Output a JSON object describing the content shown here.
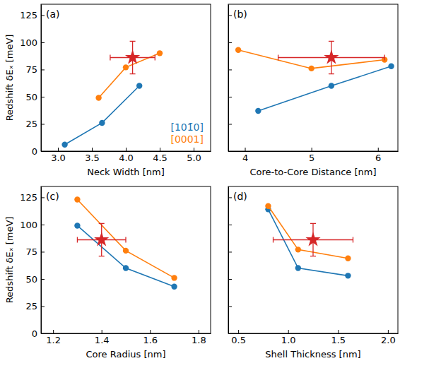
{
  "chart_data": [
    {
      "type": "line",
      "title": "(a)",
      "x_label": "Neck Width [nm]",
      "y_label": "Redshift δEₓ [meV]",
      "xlim": [
        2.75,
        5.25
      ],
      "xticks": [
        {
          "value": 3,
          "label": "3.0"
        },
        3.5,
        {
          "value": 4,
          "label": "4.0"
        },
        4.5,
        {
          "value": 5,
          "label": "5.0"
        }
      ],
      "ylim": [
        0,
        135
      ],
      "yticks": [
        0,
        25,
        50,
        75,
        100,
        125
      ],
      "legend": "lower right",
      "series": [
        {
          "name": "[101̄0]",
          "color": "#1f77b4",
          "marker": "circle",
          "x": [
            3.1,
            3.65,
            4.2
          ],
          "values": [
            6,
            26,
            60
          ]
        },
        {
          "name": "[0001]",
          "color": "#ff7f0e",
          "marker": "circle",
          "x": [
            3.6,
            4.0,
            4.5
          ],
          "values": [
            49,
            77,
            90
          ]
        },
        {
          "type": "scatter",
          "color": "#d62728",
          "marker": "star",
          "x": [
            4.1
          ],
          "values": [
            86
          ],
          "x_error": [
            0.33
          ],
          "y_error": [
            15
          ]
        }
      ]
    },
    {
      "type": "line",
      "title": "(b)",
      "x_label": "Core-to-Core Distance [nm]",
      "xlim": [
        3.75,
        6.3
      ],
      "xticks": [
        4,
        5,
        6
      ],
      "ylim": [
        0,
        135
      ],
      "yticks": [
        0,
        25,
        50,
        75,
        100,
        125
      ],
      "tick_labels": "x",
      "series": [
        {
          "color": "#1f77b4",
          "marker": "circle",
          "x": [
            4.2,
            5.3,
            6.2
          ],
          "values": [
            37,
            60,
            78
          ]
        },
        {
          "color": "#ff7f0e",
          "marker": "circle",
          "x": [
            3.9,
            5.0,
            6.1
          ],
          "values": [
            93,
            76,
            84
          ]
        },
        {
          "type": "scatter",
          "color": "#d62728",
          "marker": "star",
          "x": [
            5.3
          ],
          "values": [
            86
          ],
          "x_error": [
            0.8
          ],
          "y_error": [
            15
          ]
        }
      ]
    },
    {
      "type": "line",
      "title": "(c)",
      "x_label": "Core Radius [nm]",
      "y_label": "Redshift δEₓ [meV]",
      "xlim": [
        1.15,
        1.85
      ],
      "xticks": [
        1.2,
        1.4,
        1.6,
        1.8
      ],
      "ylim": [
        0,
        135
      ],
      "yticks": [
        0,
        25,
        50,
        75,
        100,
        125
      ],
      "series": [
        {
          "color": "#1f77b4",
          "marker": "circle",
          "x": [
            1.3,
            1.5,
            1.7
          ],
          "values": [
            99,
            60,
            43
          ]
        },
        {
          "color": "#ff7f0e",
          "marker": "circle",
          "x": [
            1.3,
            1.5,
            1.7
          ],
          "values": [
            123,
            76,
            51
          ]
        },
        {
          "type": "scatter",
          "color": "#d62728",
          "marker": "star",
          "x": [
            1.4
          ],
          "values": [
            86
          ],
          "x_error": [
            0.1
          ],
          "y_error": [
            15
          ]
        }
      ]
    },
    {
      "type": "line",
      "title": "(d)",
      "x_label": "Shell Thickness [nm]",
      "xlim": [
        0.4,
        2.1
      ],
      "xticks": [
        0.5,
        {
          "value": 1,
          "label": "1.0"
        },
        1.5,
        {
          "value": 2,
          "label": "2.0"
        }
      ],
      "ylim": [
        0,
        135
      ],
      "yticks": [
        0,
        25,
        50,
        75,
        100,
        125
      ],
      "tick_labels": "x",
      "series": [
        {
          "color": "#1f77b4",
          "marker": "circle",
          "x": [
            0.8,
            1.1,
            1.6
          ],
          "values": [
            114,
            60,
            53
          ]
        },
        {
          "color": "#ff7f0e",
          "marker": "circle",
          "x": [
            0.8,
            1.1,
            1.6
          ],
          "values": [
            117,
            77,
            69
          ]
        },
        {
          "type": "scatter",
          "color": "#d62728",
          "marker": "star",
          "x": [
            1.25
          ],
          "values": [
            86
          ],
          "x_error": [
            0.4
          ],
          "y_error": [
            15
          ]
        }
      ]
    }
  ]
}
